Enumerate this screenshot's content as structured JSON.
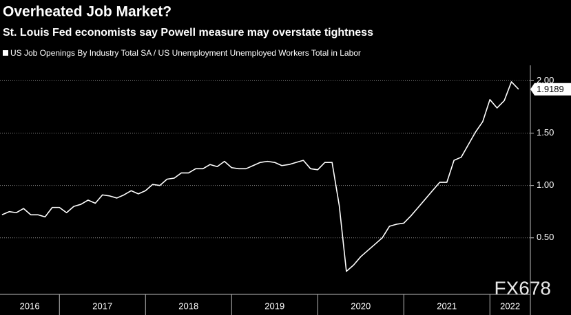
{
  "chart_data": {
    "type": "line",
    "title": "Overheated Job Market?",
    "subtitle": "St. Louis Fed economists say Powell measure may overstate tightness",
    "annotation": "FX678",
    "x": [
      2016.333,
      2016.417,
      2016.5,
      2016.583,
      2016.667,
      2016.75,
      2016.833,
      2016.917,
      2017.0,
      2017.083,
      2017.167,
      2017.25,
      2017.333,
      2017.417,
      2017.5,
      2017.583,
      2017.667,
      2017.75,
      2017.833,
      2017.917,
      2018.0,
      2018.083,
      2018.167,
      2018.25,
      2018.333,
      2018.417,
      2018.5,
      2018.583,
      2018.667,
      2018.75,
      2018.833,
      2018.917,
      2019.0,
      2019.083,
      2019.167,
      2019.25,
      2019.333,
      2019.417,
      2019.5,
      2019.583,
      2019.667,
      2019.75,
      2019.833,
      2019.917,
      2020.0,
      2020.083,
      2020.167,
      2020.25,
      2020.333,
      2020.417,
      2020.5,
      2020.583,
      2020.667,
      2020.75,
      2020.833,
      2020.917,
      2021.0,
      2021.083,
      2021.167,
      2021.25,
      2021.333,
      2021.417,
      2021.5,
      2021.583,
      2021.667,
      2021.75,
      2021.833,
      2021.917,
      2022.0,
      2022.083,
      2022.167,
      2022.25,
      2022.333
    ],
    "series": [
      {
        "name": "US Job Openings By Industry Total SA / US Unemployment Unemployed Workers Total in Labor",
        "color": "#ffffff",
        "values": [
          0.72,
          0.75,
          0.74,
          0.78,
          0.72,
          0.72,
          0.7,
          0.79,
          0.79,
          0.74,
          0.8,
          0.82,
          0.86,
          0.83,
          0.91,
          0.9,
          0.88,
          0.91,
          0.95,
          0.92,
          0.95,
          1.01,
          1.0,
          1.06,
          1.07,
          1.12,
          1.12,
          1.16,
          1.16,
          1.2,
          1.18,
          1.23,
          1.17,
          1.16,
          1.16,
          1.19,
          1.22,
          1.23,
          1.22,
          1.19,
          1.2,
          1.22,
          1.24,
          1.16,
          1.15,
          1.22,
          1.22,
          0.81,
          0.18,
          0.24,
          0.32,
          0.38,
          0.44,
          0.5,
          0.61,
          0.63,
          0.64,
          0.71,
          0.79,
          0.87,
          0.95,
          1.03,
          1.03,
          1.24,
          1.27,
          1.39,
          1.51,
          1.61,
          1.82,
          1.74,
          1.81,
          1.99,
          1.9189
        ]
      }
    ],
    "xlim": [
      2016.31,
      2022.47
    ],
    "xticks": [
      2016,
      2017,
      2018,
      2019,
      2020,
      2021,
      2022
    ],
    "ylim": [
      -0.04,
      2.18
    ],
    "yticks": [
      {
        "value": 0.5,
        "label": "0.50"
      },
      {
        "value": 1,
        "label": "1.00"
      },
      {
        "value": 1.5,
        "label": "1.50"
      },
      {
        "value": 2,
        "label": "2.00"
      }
    ],
    "grid": true,
    "legend": "top-left"
  }
}
